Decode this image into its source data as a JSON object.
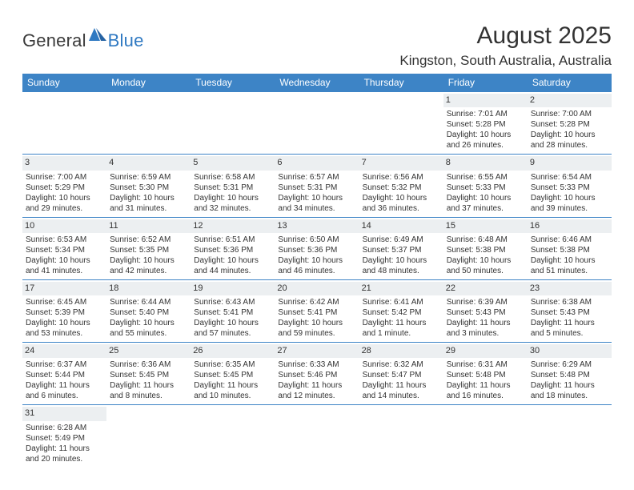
{
  "logo": {
    "word1": "General",
    "word2": "Blue"
  },
  "title": "August 2025",
  "location": "Kingston, South Australia, Australia",
  "colors": {
    "header_bar": "#3d84c6",
    "row_divider": "#3d84c6",
    "daynum_bg": "#eceff1",
    "text": "#333333",
    "logo_blue": "#2f79c2",
    "background": "#ffffff"
  },
  "typography": {
    "title_fontsize": 30,
    "location_fontsize": 17,
    "header_fontsize": 12,
    "cell_fontsize": 10,
    "daynum_fontsize": 11,
    "logo_fontsize": 22
  },
  "layout": {
    "columns": 7,
    "cell_min_height": 66
  },
  "weekdays": [
    "Sunday",
    "Monday",
    "Tuesday",
    "Wednesday",
    "Thursday",
    "Friday",
    "Saturday"
  ],
  "weeks": [
    [
      null,
      null,
      null,
      null,
      null,
      {
        "n": "1",
        "sunrise": "Sunrise: 7:01 AM",
        "sunset": "Sunset: 5:28 PM",
        "day1": "Daylight: 10 hours",
        "day2": "and 26 minutes."
      },
      {
        "n": "2",
        "sunrise": "Sunrise: 7:00 AM",
        "sunset": "Sunset: 5:28 PM",
        "day1": "Daylight: 10 hours",
        "day2": "and 28 minutes."
      }
    ],
    [
      {
        "n": "3",
        "sunrise": "Sunrise: 7:00 AM",
        "sunset": "Sunset: 5:29 PM",
        "day1": "Daylight: 10 hours",
        "day2": "and 29 minutes."
      },
      {
        "n": "4",
        "sunrise": "Sunrise: 6:59 AM",
        "sunset": "Sunset: 5:30 PM",
        "day1": "Daylight: 10 hours",
        "day2": "and 31 minutes."
      },
      {
        "n": "5",
        "sunrise": "Sunrise: 6:58 AM",
        "sunset": "Sunset: 5:31 PM",
        "day1": "Daylight: 10 hours",
        "day2": "and 32 minutes."
      },
      {
        "n": "6",
        "sunrise": "Sunrise: 6:57 AM",
        "sunset": "Sunset: 5:31 PM",
        "day1": "Daylight: 10 hours",
        "day2": "and 34 minutes."
      },
      {
        "n": "7",
        "sunrise": "Sunrise: 6:56 AM",
        "sunset": "Sunset: 5:32 PM",
        "day1": "Daylight: 10 hours",
        "day2": "and 36 minutes."
      },
      {
        "n": "8",
        "sunrise": "Sunrise: 6:55 AM",
        "sunset": "Sunset: 5:33 PM",
        "day1": "Daylight: 10 hours",
        "day2": "and 37 minutes."
      },
      {
        "n": "9",
        "sunrise": "Sunrise: 6:54 AM",
        "sunset": "Sunset: 5:33 PM",
        "day1": "Daylight: 10 hours",
        "day2": "and 39 minutes."
      }
    ],
    [
      {
        "n": "10",
        "sunrise": "Sunrise: 6:53 AM",
        "sunset": "Sunset: 5:34 PM",
        "day1": "Daylight: 10 hours",
        "day2": "and 41 minutes."
      },
      {
        "n": "11",
        "sunrise": "Sunrise: 6:52 AM",
        "sunset": "Sunset: 5:35 PM",
        "day1": "Daylight: 10 hours",
        "day2": "and 42 minutes."
      },
      {
        "n": "12",
        "sunrise": "Sunrise: 6:51 AM",
        "sunset": "Sunset: 5:36 PM",
        "day1": "Daylight: 10 hours",
        "day2": "and 44 minutes."
      },
      {
        "n": "13",
        "sunrise": "Sunrise: 6:50 AM",
        "sunset": "Sunset: 5:36 PM",
        "day1": "Daylight: 10 hours",
        "day2": "and 46 minutes."
      },
      {
        "n": "14",
        "sunrise": "Sunrise: 6:49 AM",
        "sunset": "Sunset: 5:37 PM",
        "day1": "Daylight: 10 hours",
        "day2": "and 48 minutes."
      },
      {
        "n": "15",
        "sunrise": "Sunrise: 6:48 AM",
        "sunset": "Sunset: 5:38 PM",
        "day1": "Daylight: 10 hours",
        "day2": "and 50 minutes."
      },
      {
        "n": "16",
        "sunrise": "Sunrise: 6:46 AM",
        "sunset": "Sunset: 5:38 PM",
        "day1": "Daylight: 10 hours",
        "day2": "and 51 minutes."
      }
    ],
    [
      {
        "n": "17",
        "sunrise": "Sunrise: 6:45 AM",
        "sunset": "Sunset: 5:39 PM",
        "day1": "Daylight: 10 hours",
        "day2": "and 53 minutes."
      },
      {
        "n": "18",
        "sunrise": "Sunrise: 6:44 AM",
        "sunset": "Sunset: 5:40 PM",
        "day1": "Daylight: 10 hours",
        "day2": "and 55 minutes."
      },
      {
        "n": "19",
        "sunrise": "Sunrise: 6:43 AM",
        "sunset": "Sunset: 5:41 PM",
        "day1": "Daylight: 10 hours",
        "day2": "and 57 minutes."
      },
      {
        "n": "20",
        "sunrise": "Sunrise: 6:42 AM",
        "sunset": "Sunset: 5:41 PM",
        "day1": "Daylight: 10 hours",
        "day2": "and 59 minutes."
      },
      {
        "n": "21",
        "sunrise": "Sunrise: 6:41 AM",
        "sunset": "Sunset: 5:42 PM",
        "day1": "Daylight: 11 hours",
        "day2": "and 1 minute."
      },
      {
        "n": "22",
        "sunrise": "Sunrise: 6:39 AM",
        "sunset": "Sunset: 5:43 PM",
        "day1": "Daylight: 11 hours",
        "day2": "and 3 minutes."
      },
      {
        "n": "23",
        "sunrise": "Sunrise: 6:38 AM",
        "sunset": "Sunset: 5:43 PM",
        "day1": "Daylight: 11 hours",
        "day2": "and 5 minutes."
      }
    ],
    [
      {
        "n": "24",
        "sunrise": "Sunrise: 6:37 AM",
        "sunset": "Sunset: 5:44 PM",
        "day1": "Daylight: 11 hours",
        "day2": "and 6 minutes."
      },
      {
        "n": "25",
        "sunrise": "Sunrise: 6:36 AM",
        "sunset": "Sunset: 5:45 PM",
        "day1": "Daylight: 11 hours",
        "day2": "and 8 minutes."
      },
      {
        "n": "26",
        "sunrise": "Sunrise: 6:35 AM",
        "sunset": "Sunset: 5:45 PM",
        "day1": "Daylight: 11 hours",
        "day2": "and 10 minutes."
      },
      {
        "n": "27",
        "sunrise": "Sunrise: 6:33 AM",
        "sunset": "Sunset: 5:46 PM",
        "day1": "Daylight: 11 hours",
        "day2": "and 12 minutes."
      },
      {
        "n": "28",
        "sunrise": "Sunrise: 6:32 AM",
        "sunset": "Sunset: 5:47 PM",
        "day1": "Daylight: 11 hours",
        "day2": "and 14 minutes."
      },
      {
        "n": "29",
        "sunrise": "Sunrise: 6:31 AM",
        "sunset": "Sunset: 5:48 PM",
        "day1": "Daylight: 11 hours",
        "day2": "and 16 minutes."
      },
      {
        "n": "30",
        "sunrise": "Sunrise: 6:29 AM",
        "sunset": "Sunset: 5:48 PM",
        "day1": "Daylight: 11 hours",
        "day2": "and 18 minutes."
      }
    ],
    [
      {
        "n": "31",
        "sunrise": "Sunrise: 6:28 AM",
        "sunset": "Sunset: 5:49 PM",
        "day1": "Daylight: 11 hours",
        "day2": "and 20 minutes."
      },
      null,
      null,
      null,
      null,
      null,
      null
    ]
  ]
}
